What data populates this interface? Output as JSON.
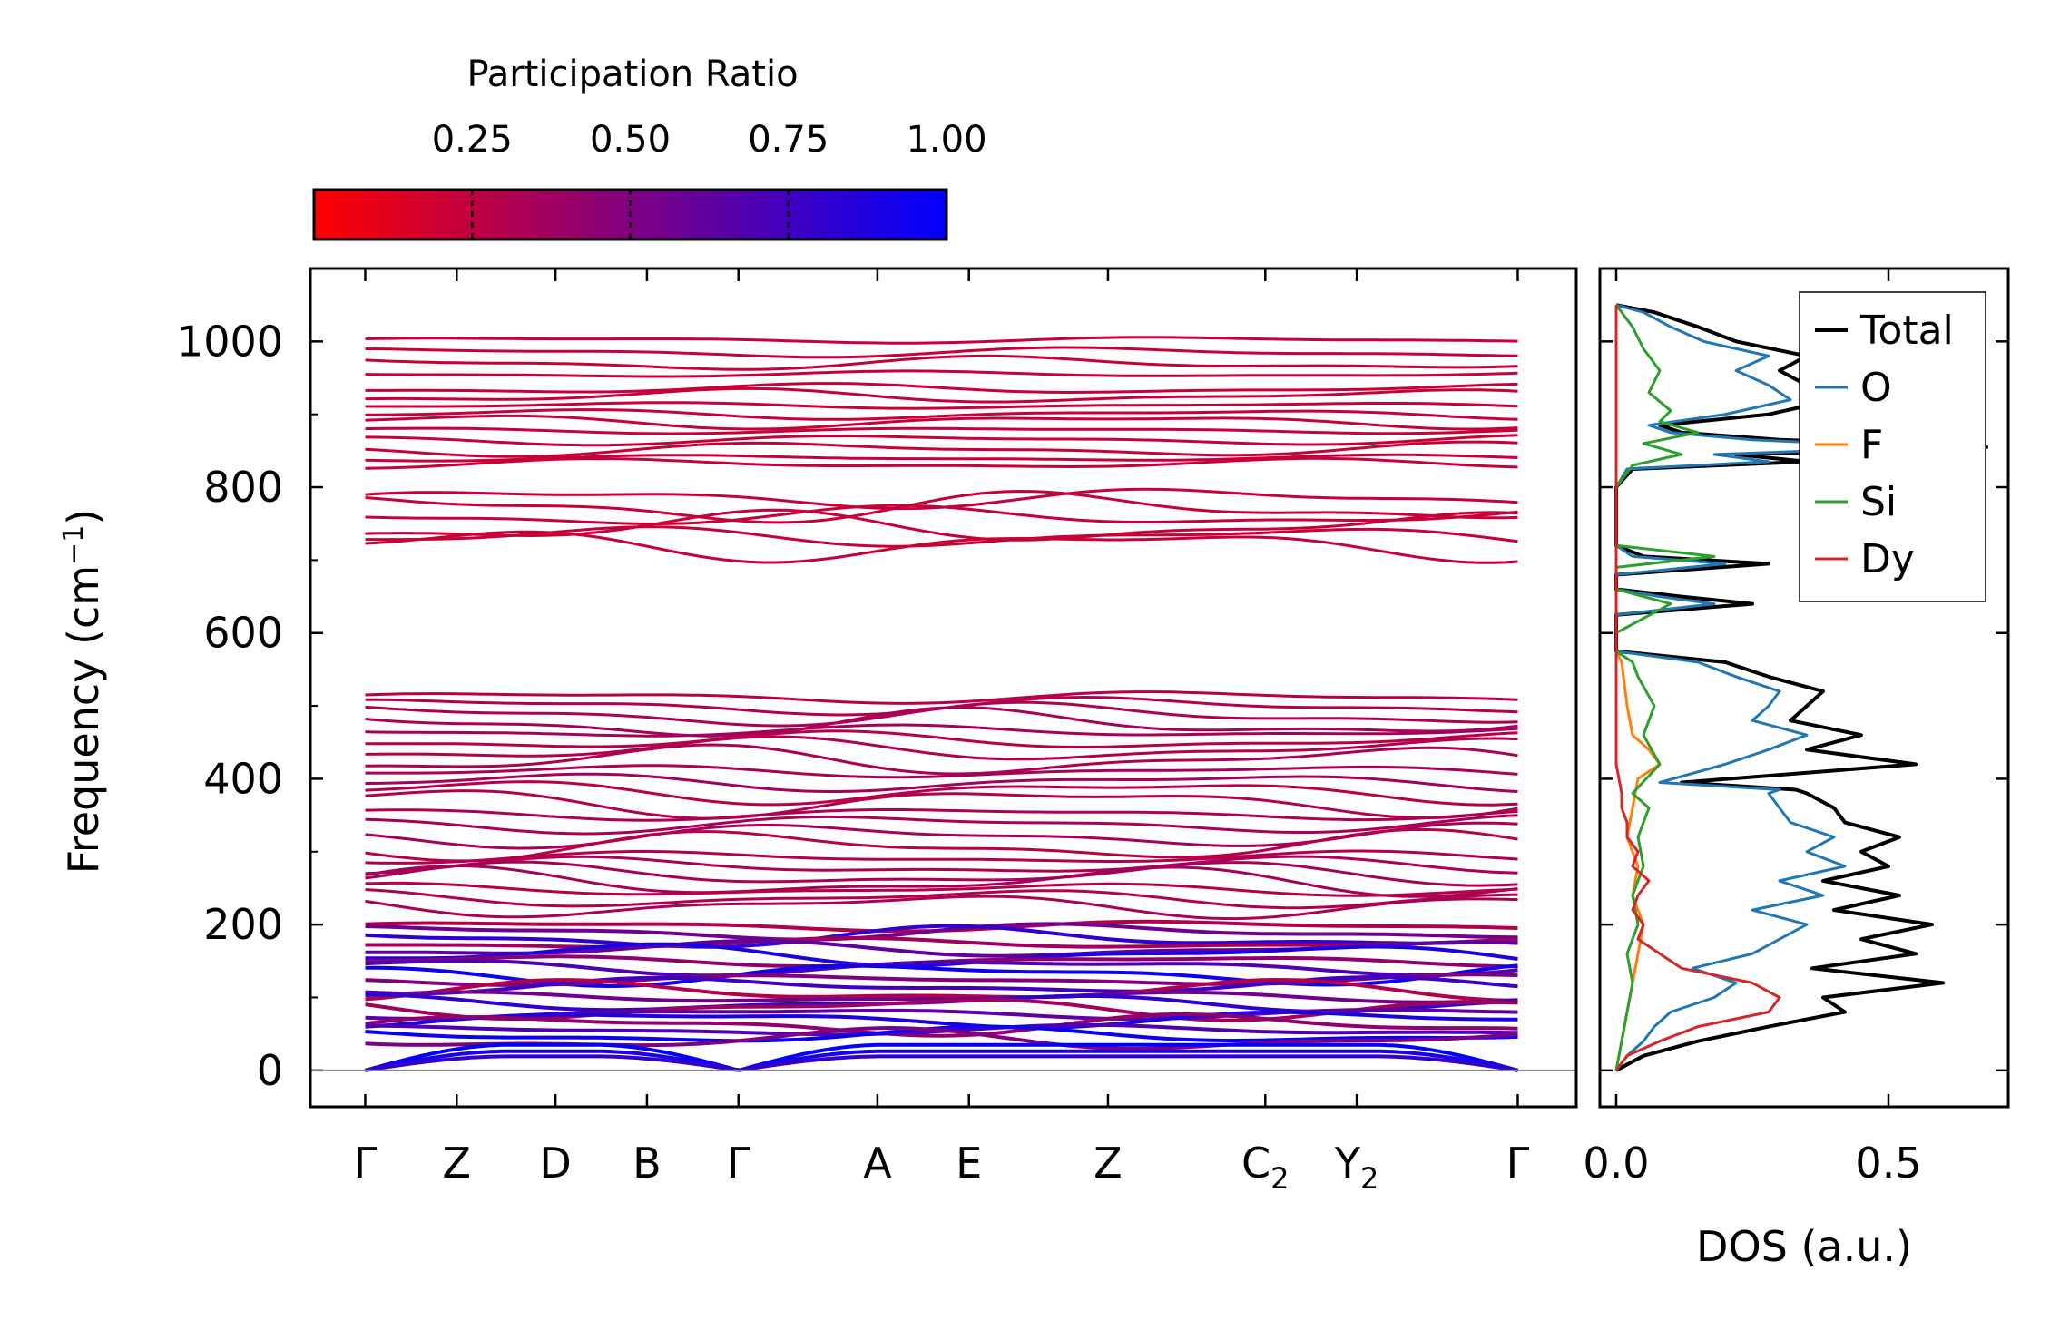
{
  "chart_data": [
    {
      "type": "line",
      "name": "phonon-band-structure",
      "ylabel": "Frequency",
      "ylabel_unit": "(cm",
      "ylabel_exp": "−1",
      "ylabel_close": ")",
      "ylim": [
        -50,
        1100
      ],
      "yticks": [
        0,
        200,
        400,
        600,
        800,
        1000
      ],
      "kpoints": [
        {
          "label": "Γ",
          "sub": "",
          "pos": 0.0
        },
        {
          "label": "Z",
          "sub": "",
          "pos": 0.5
        },
        {
          "label": "D",
          "sub": "",
          "pos": 1.04
        },
        {
          "label": "B",
          "sub": "",
          "pos": 1.54
        },
        {
          "label": "Γ",
          "sub": "",
          "pos": 2.04
        },
        {
          "label": "A",
          "sub": "",
          "pos": 2.8
        },
        {
          "label": "E",
          "sub": "",
          "pos": 3.3
        },
        {
          "label": "Z",
          "sub": "",
          "pos": 4.06
        },
        {
          "label": "C",
          "sub": "2",
          "pos": 4.92
        },
        {
          "label": "Y",
          "sub": "2",
          "pos": 5.42
        },
        {
          "label": "Γ",
          "sub": "",
          "pos": 6.3
        }
      ],
      "xlim": [
        -0.3,
        6.62
      ],
      "colorbar": {
        "title": "Participation Ratio",
        "ticks": [
          "0.25",
          "0.50",
          "0.75",
          "1.00"
        ],
        "tick_values": [
          0.25,
          0.5,
          0.75,
          1.0
        ],
        "range": [
          0.0,
          1.0
        ],
        "low_color": "#ff0000",
        "mid_color": "#800080",
        "high_color": "#0000ff"
      },
      "bands": {
        "upper_high": [
          1002,
          985,
          970,
          955,
          935,
          925,
          912,
          900,
          890,
          878,
          865,
          852,
          840,
          832
        ],
        "upper_mid": [
          785,
          772,
          760,
          745,
          732,
          720
        ],
        "middle": [
          512,
          500,
          488,
          476,
          465,
          452,
          440,
          425,
          410,
          395,
          382,
          368,
          352,
          338,
          322,
          308,
          292,
          280,
          268,
          258,
          248,
          236,
          226
        ],
        "low": [
          198,
          190,
          182,
          174,
          166,
          158,
          150,
          142,
          132,
          124,
          116,
          108,
          100,
          92,
          85,
          78,
          70,
          62,
          55,
          48,
          42
        ],
        "acoustic_max": 35,
        "pr_upper": 0.22,
        "pr_middle": 0.28,
        "pr_low_range": [
          0.3,
          0.95
        ]
      }
    },
    {
      "type": "line",
      "name": "phonon-dos",
      "xlabel": "DOS (a.u.)",
      "xlim": [
        -0.03,
        0.72
      ],
      "xticks": [
        "0.0",
        "0.5"
      ],
      "xtick_values": [
        0.0,
        0.5
      ],
      "ylim": [
        -50,
        1100
      ],
      "series": [
        {
          "name": "Total",
          "color": "#000000",
          "y": [
            0,
            20,
            40,
            60,
            80,
            100,
            120,
            140,
            160,
            180,
            200,
            220,
            240,
            260,
            280,
            300,
            320,
            340,
            360,
            380,
            385,
            395,
            420,
            440,
            460,
            480,
            500,
            520,
            540,
            560,
            575,
            600,
            625,
            640,
            650,
            660,
            680,
            695,
            705,
            720,
            800,
            825,
            835,
            845,
            855,
            865,
            875,
            885,
            900,
            920,
            940,
            960,
            980,
            1000,
            1020,
            1040,
            1050
          ],
          "x": [
            0.0,
            0.05,
            0.15,
            0.28,
            0.42,
            0.38,
            0.6,
            0.36,
            0.55,
            0.45,
            0.58,
            0.4,
            0.52,
            0.38,
            0.5,
            0.45,
            0.52,
            0.42,
            0.4,
            0.35,
            0.33,
            0.12,
            0.55,
            0.35,
            0.45,
            0.32,
            0.35,
            0.38,
            0.28,
            0.2,
            0.0,
            0.0,
            0.0,
            0.25,
            0.12,
            0.0,
            0.0,
            0.28,
            0.05,
            0.0,
            0.0,
            0.03,
            0.35,
            0.22,
            0.68,
            0.3,
            0.12,
            0.08,
            0.28,
            0.4,
            0.35,
            0.3,
            0.35,
            0.22,
            0.15,
            0.07,
            0.0
          ]
        },
        {
          "name": "O",
          "color": "#1f77b4",
          "y": [
            0,
            20,
            40,
            60,
            80,
            100,
            120,
            140,
            160,
            180,
            200,
            220,
            240,
            260,
            280,
            300,
            320,
            340,
            360,
            380,
            385,
            395,
            420,
            440,
            460,
            480,
            500,
            520,
            540,
            560,
            575,
            600,
            625,
            640,
            650,
            660,
            680,
            695,
            705,
            720,
            800,
            825,
            835,
            845,
            855,
            865,
            875,
            885,
            900,
            920,
            940,
            960,
            980,
            1000,
            1020,
            1040,
            1050
          ],
          "x": [
            0.0,
            0.02,
            0.05,
            0.07,
            0.1,
            0.18,
            0.22,
            0.14,
            0.25,
            0.3,
            0.35,
            0.25,
            0.38,
            0.3,
            0.42,
            0.35,
            0.4,
            0.32,
            0.3,
            0.28,
            0.3,
            0.08,
            0.2,
            0.28,
            0.35,
            0.25,
            0.28,
            0.3,
            0.22,
            0.15,
            0.0,
            0.0,
            0.0,
            0.18,
            0.08,
            0.0,
            0.0,
            0.2,
            0.03,
            0.0,
            0.0,
            0.02,
            0.28,
            0.18,
            0.55,
            0.25,
            0.1,
            0.06,
            0.2,
            0.32,
            0.28,
            0.22,
            0.28,
            0.16,
            0.1,
            0.05,
            0.0
          ]
        },
        {
          "name": "F",
          "color": "#ff7f0e",
          "y": [
            0,
            40,
            80,
            120,
            160,
            200,
            240,
            280,
            320,
            360,
            400,
            420,
            440,
            460,
            500,
            560,
            575,
            1050
          ],
          "x": [
            0.0,
            0.01,
            0.02,
            0.03,
            0.04,
            0.05,
            0.03,
            0.04,
            0.02,
            0.03,
            0.04,
            0.08,
            0.06,
            0.03,
            0.02,
            0.01,
            0.0,
            0.0
          ]
        },
        {
          "name": "Si",
          "color": "#2ca02c",
          "y": [
            0,
            40,
            80,
            120,
            160,
            200,
            240,
            280,
            320,
            360,
            380,
            420,
            460,
            500,
            540,
            560,
            575,
            600,
            640,
            660,
            690,
            705,
            720,
            800,
            830,
            845,
            860,
            875,
            890,
            905,
            930,
            960,
            990,
            1020,
            1050
          ],
          "x": [
            0.0,
            0.01,
            0.02,
            0.03,
            0.02,
            0.04,
            0.03,
            0.05,
            0.04,
            0.06,
            0.03,
            0.08,
            0.05,
            0.07,
            0.04,
            0.03,
            0.0,
            0.0,
            0.1,
            0.0,
            0.0,
            0.18,
            0.0,
            0.0,
            0.03,
            0.12,
            0.05,
            0.15,
            0.08,
            0.1,
            0.06,
            0.08,
            0.05,
            0.03,
            0.0
          ]
        },
        {
          "name": "Dy",
          "color": "#d62728",
          "y": [
            0,
            20,
            40,
            60,
            80,
            100,
            120,
            140,
            160,
            180,
            200,
            220,
            240,
            260,
            280,
            300,
            320,
            340,
            360,
            380,
            400,
            420,
            1050
          ],
          "x": [
            0.0,
            0.02,
            0.08,
            0.15,
            0.28,
            0.3,
            0.25,
            0.12,
            0.08,
            0.04,
            0.05,
            0.03,
            0.04,
            0.06,
            0.03,
            0.04,
            0.02,
            0.02,
            0.01,
            0.01,
            0.005,
            0.0,
            0.0
          ]
        }
      ]
    }
  ]
}
